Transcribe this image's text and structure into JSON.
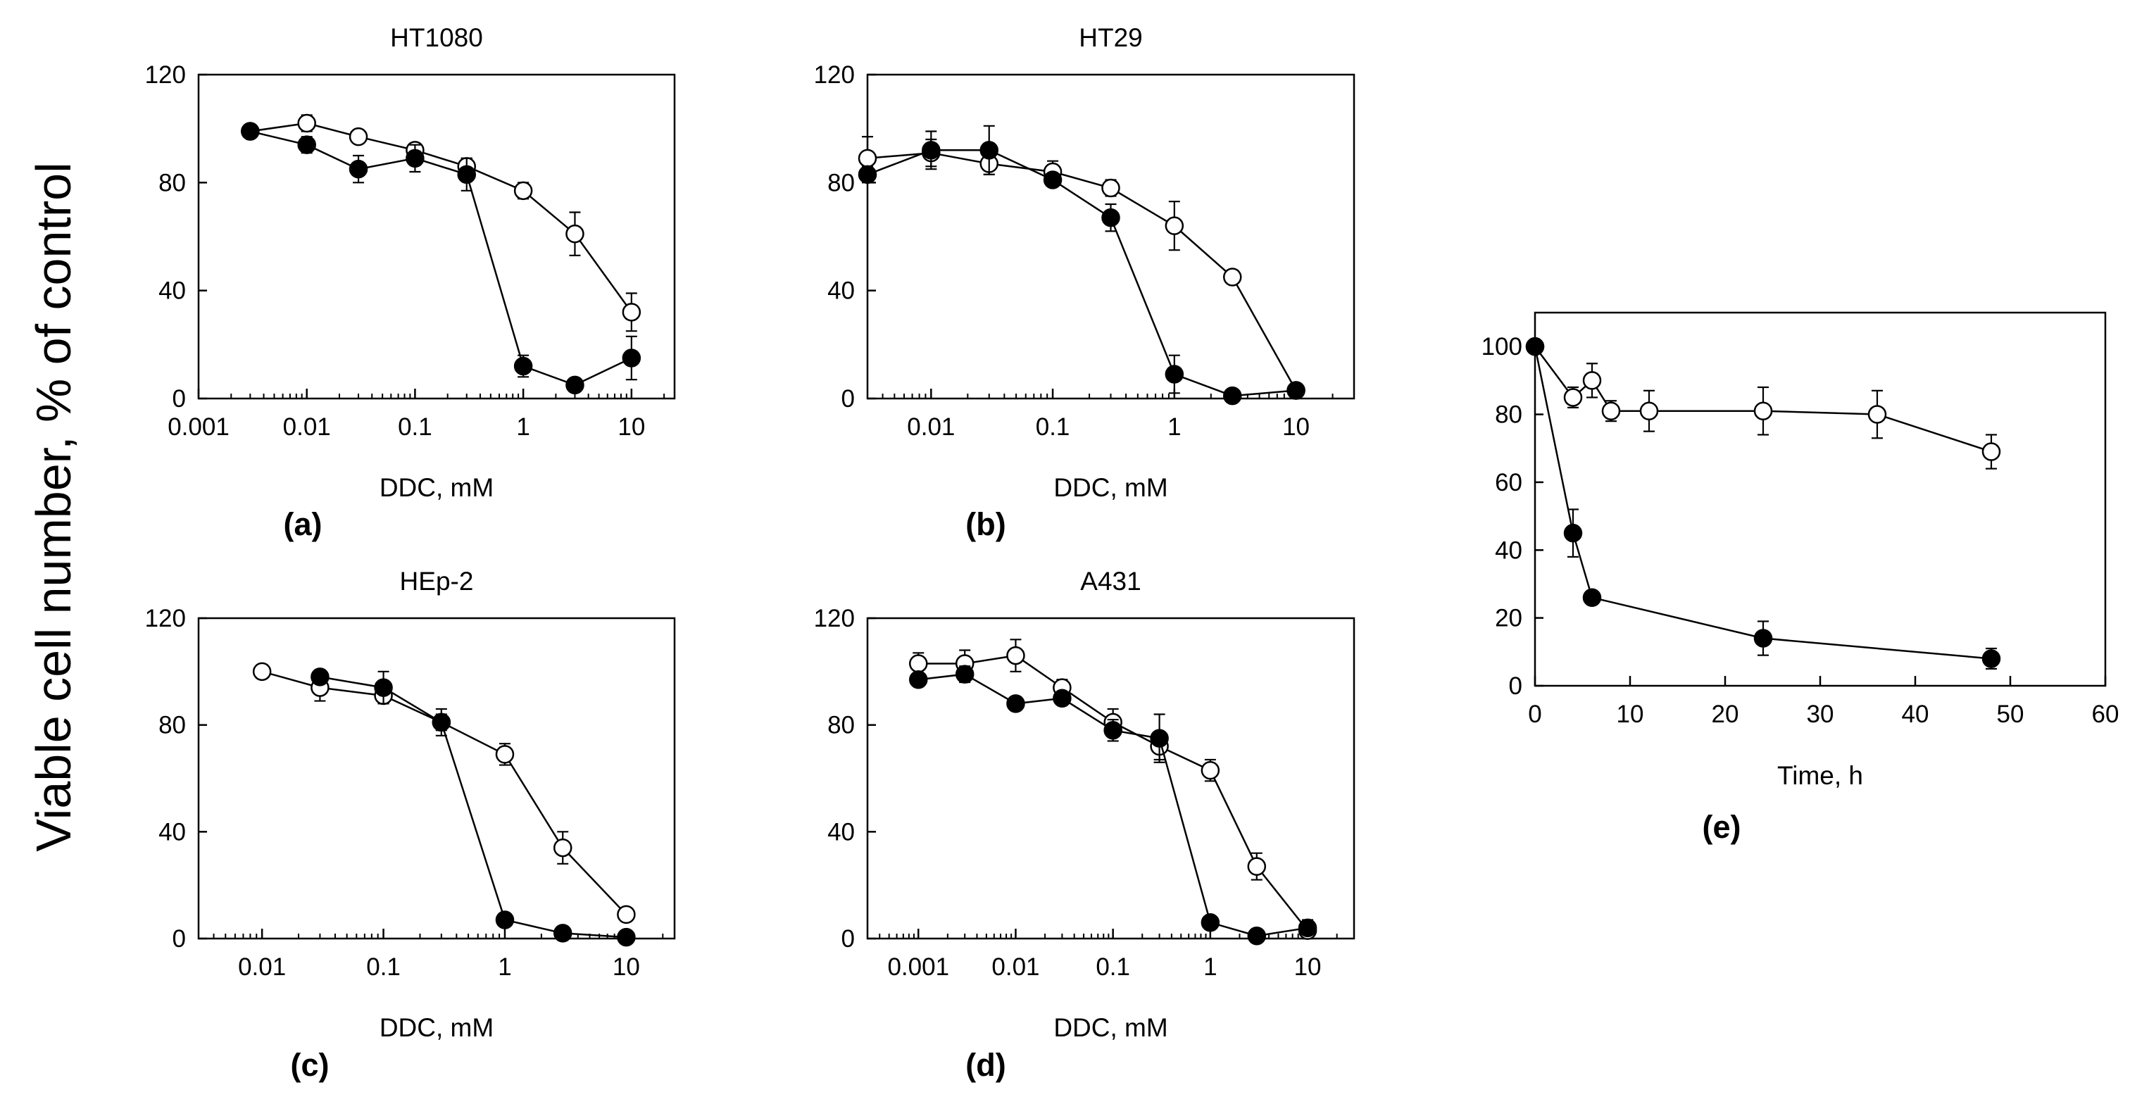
{
  "figure": {
    "ylabel": "Viable cell number, % of control"
  },
  "chart_data": [
    {
      "panel": "(a)",
      "type": "line",
      "title": "HT1080",
      "xlabel": "DDC, mM",
      "xscale": "log",
      "xlim": [
        0.001,
        25
      ],
      "ylim": [
        0,
        120
      ],
      "xticks": [
        0.001,
        0.01,
        0.1,
        1,
        10
      ],
      "xtick_labels": [
        "0.001",
        "0.01",
        "0.1",
        "1",
        "10"
      ],
      "yticks": [
        0,
        40,
        80,
        120
      ],
      "ytick_labels": [
        "0",
        "40",
        "80",
        "120"
      ],
      "series": [
        {
          "name": "open",
          "marker": "open-circle",
          "x": [
            0.003,
            0.01,
            0.03,
            0.1,
            0.3,
            1,
            3,
            10
          ],
          "y": [
            99,
            102,
            97,
            92,
            86,
            77,
            61,
            32
          ],
          "err": [
            2,
            3,
            1.5,
            2,
            3,
            3,
            8,
            7
          ]
        },
        {
          "name": "filled",
          "marker": "filled-circle",
          "x": [
            0.003,
            0.01,
            0.03,
            0.1,
            0.3,
            1,
            3,
            10
          ],
          "y": [
            99,
            94,
            85,
            89,
            83,
            12,
            5,
            15
          ],
          "err": [
            2,
            3,
            5,
            5,
            6,
            4,
            2,
            8
          ]
        }
      ]
    },
    {
      "panel": "(b)",
      "type": "line",
      "title": "HT29",
      "xlabel": "DDC, mM",
      "xscale": "log",
      "xlim": [
        0.003,
        30
      ],
      "ylim": [
        0,
        120
      ],
      "xticks": [
        0.01,
        0.1,
        1,
        10
      ],
      "xtick_labels": [
        "0.01",
        "0.1",
        "1",
        "10"
      ],
      "yticks": [
        0,
        40,
        80,
        120
      ],
      "ytick_labels": [
        "0",
        "40",
        "80",
        "120"
      ],
      "series": [
        {
          "name": "open",
          "marker": "open-circle",
          "x": [
            0.003,
            0.01,
            0.03,
            0.1,
            0.3,
            1,
            3,
            10
          ],
          "y": [
            89,
            91,
            87,
            84,
            78,
            64,
            45,
            3
          ],
          "err": [
            8,
            5,
            4,
            4,
            3,
            9,
            1.5,
            1
          ]
        },
        {
          "name": "filled",
          "marker": "filled-circle",
          "x": [
            0.003,
            0.01,
            0.03,
            0.1,
            0.3,
            1,
            3,
            10
          ],
          "y": [
            83,
            92,
            92,
            81,
            67,
            9,
            1,
            3
          ],
          "err": [
            3,
            7,
            9,
            2,
            5,
            7,
            1,
            2
          ]
        }
      ]
    },
    {
      "panel": "(c)",
      "type": "line",
      "title": "HEp-2",
      "xlabel": "DDC, mM",
      "xscale": "log",
      "xlim": [
        0.003,
        25
      ],
      "ylim": [
        0,
        120
      ],
      "xticks": [
        0.01,
        0.1,
        1,
        10
      ],
      "xtick_labels": [
        "0.01",
        "0.1",
        "1",
        "10"
      ],
      "yticks": [
        0,
        40,
        80,
        120
      ],
      "ytick_labels": [
        "0",
        "40",
        "80",
        "120"
      ],
      "series": [
        {
          "name": "open",
          "marker": "open-circle",
          "x": [
            0.01,
            0.03,
            0.1,
            0.3,
            1,
            3,
            10
          ],
          "y": [
            100,
            94,
            91,
            81,
            69,
            34,
            9
          ],
          "err": [
            1,
            5,
            3,
            5,
            4,
            6,
            1
          ]
        },
        {
          "name": "filled",
          "marker": "filled-circle",
          "x": [
            0.03,
            0.1,
            0.3,
            1,
            3,
            10
          ],
          "y": [
            98,
            94,
            81,
            7,
            2,
            0.5
          ],
          "err": [
            1,
            6,
            3,
            1,
            1,
            0.5
          ]
        }
      ]
    },
    {
      "panel": "(d)",
      "type": "line",
      "title": "A431",
      "xlabel": "DDC, mM",
      "xscale": "log",
      "xlim": [
        0.0003,
        30
      ],
      "ylim": [
        0,
        120
      ],
      "xticks": [
        0.001,
        0.01,
        0.1,
        1,
        10
      ],
      "xtick_labels": [
        "0.001",
        "0.01",
        "0.1",
        "1",
        "10"
      ],
      "yticks": [
        0,
        40,
        80,
        120
      ],
      "ytick_labels": [
        "0",
        "40",
        "80",
        "120"
      ],
      "series": [
        {
          "name": "open",
          "marker": "open-circle",
          "x": [
            0.001,
            0.003,
            0.01,
            0.03,
            0.1,
            0.3,
            1,
            3,
            10
          ],
          "y": [
            103,
            103,
            106,
            94,
            81,
            72,
            63,
            27,
            3
          ],
          "err": [
            4,
            5,
            6,
            3,
            5,
            5,
            4,
            5,
            4
          ]
        },
        {
          "name": "filled",
          "marker": "filled-circle",
          "x": [
            0.001,
            0.003,
            0.01,
            0.03,
            0.1,
            0.3,
            1,
            3,
            10
          ],
          "y": [
            97,
            99,
            88,
            90,
            78,
            75,
            6,
            1,
            4
          ],
          "err": [
            2,
            3,
            1,
            2,
            4,
            9,
            1,
            1,
            2
          ]
        }
      ]
    },
    {
      "panel": "(e)",
      "type": "line",
      "title": "",
      "xlabel": "Time, h",
      "xscale": "linear",
      "xlim": [
        0,
        60
      ],
      "ylim": [
        0,
        110
      ],
      "xticks": [
        0,
        10,
        20,
        30,
        40,
        50,
        60
      ],
      "xtick_labels": [
        "0",
        "10",
        "20",
        "30",
        "40",
        "50",
        "60"
      ],
      "yticks": [
        0,
        20,
        40,
        60,
        80,
        100
      ],
      "ytick_labels": [
        "0",
        "20",
        "40",
        "60",
        "80",
        "100"
      ],
      "series": [
        {
          "name": "open",
          "marker": "open-circle",
          "x": [
            0,
            4,
            6,
            8,
            12,
            24,
            36,
            48
          ],
          "y": [
            100,
            85,
            90,
            81,
            81,
            81,
            80,
            69
          ],
          "err": [
            0,
            3,
            5,
            3,
            6,
            7,
            7,
            5
          ]
        },
        {
          "name": "filled",
          "marker": "filled-circle",
          "x": [
            0,
            4,
            6,
            24,
            48
          ],
          "y": [
            100,
            45,
            26,
            14,
            8
          ],
          "err": [
            0,
            7,
            2,
            5,
            3
          ]
        }
      ]
    }
  ]
}
